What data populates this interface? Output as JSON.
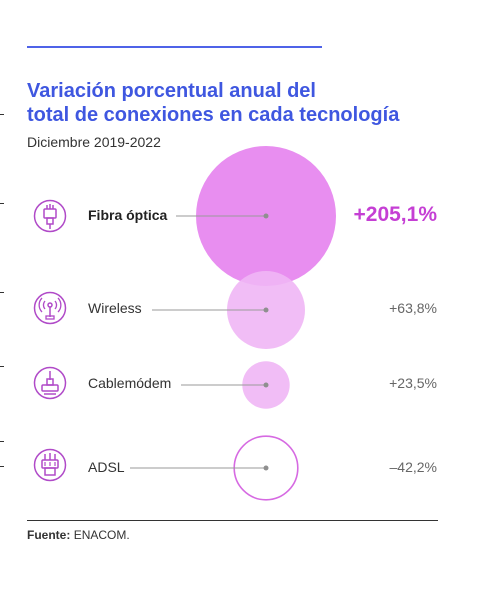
{
  "title_line1": "Variación porcentual anual del",
  "title_line2": "total de conexiones en cada tecnología",
  "subtitle": "Diciembre 2019-2022",
  "source_label": "Fuente:",
  "source_value": "ENACOM.",
  "colors": {
    "title": "#3f57e0",
    "accent_value": "#c53fd4",
    "bubble_strong": "#e88ef0",
    "bubble_light": "#efb6f5",
    "bubble_outline": "#d66ae2",
    "icon": "#b04ac8"
  },
  "chart_data": {
    "type": "bubble",
    "title": "Variación porcentual anual del total de conexiones en cada tecnología",
    "subtitle": "Diciembre 2019-2022",
    "unit": "%",
    "categories": [
      "Fibra óptica",
      "Wireless",
      "Cablemódem",
      "ADSL"
    ],
    "values": [
      205.1,
      63.8,
      23.5,
      -42.2
    ],
    "value_labels": [
      "+205,1%",
      "+63,8%",
      "+23,5%",
      "–42,2%"
    ],
    "icons": [
      "fiber-optic-icon",
      "wireless-antenna-icon",
      "cable-modem-icon",
      "adsl-connector-icon"
    ],
    "negative_style": "outline",
    "source": "Fuente: ENACOM."
  }
}
